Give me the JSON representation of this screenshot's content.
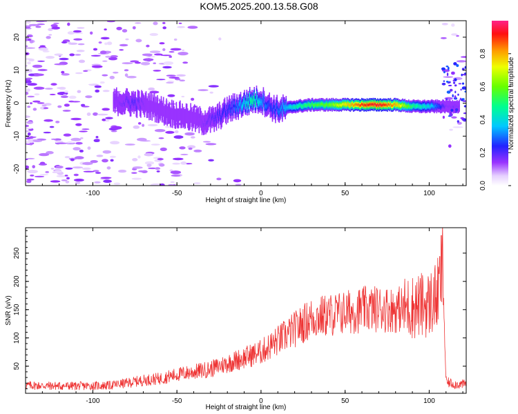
{
  "title": "KOM5.2025.200.13.58.G08",
  "chart_data": [
    {
      "type": "heatmap",
      "xlabel": "Height of straight line (km)",
      "ylabel": "Frequency (Hz)",
      "xlim": [
        -140,
        122
      ],
      "ylim": [
        -25,
        25
      ],
      "xticks": [
        -100,
        -50,
        0,
        50,
        100
      ],
      "yticks": [
        -20,
        -10,
        0,
        10,
        20
      ],
      "colorbar": {
        "label": "Normalized spectral amplitude",
        "range": [
          0,
          1
        ],
        "ticks": [
          0.0,
          0.2,
          0.4,
          0.6,
          0.8
        ]
      },
      "ridge": {
        "x": [
          -85,
          -75,
          -65,
          -55,
          -45,
          -35,
          -28,
          -20,
          -15,
          -10,
          -5,
          0,
          5,
          10,
          20,
          30,
          40,
          50,
          60,
          70,
          80,
          90,
          100,
          110
        ],
        "freq": [
          0.5,
          0,
          -1,
          -3,
          -4,
          -5.5,
          -5,
          -2,
          -1,
          0,
          1,
          1,
          -1,
          -2,
          -1,
          -0.5,
          -0.5,
          -0.5,
          -0.5,
          -0.5,
          -0.5,
          -1,
          -1,
          -1
        ],
        "amplitude": [
          0.15,
          0.2,
          0.1,
          0.1,
          0.12,
          0.15,
          0.2,
          0.25,
          0.3,
          0.4,
          0.5,
          0.35,
          0.25,
          0.3,
          0.45,
          0.55,
          0.6,
          0.75,
          0.9,
          0.95,
          0.8,
          0.5,
          0.4,
          0.15
        ]
      }
    },
    {
      "type": "line",
      "xlabel": "Height of straight line (km)",
      "ylabel": "SNR (v/v)",
      "xlim": [
        -140,
        122
      ],
      "ylim": [
        2,
        295
      ],
      "xticks": [
        -100,
        -50,
        0,
        50,
        100
      ],
      "yticks": [
        50,
        100,
        150,
        200,
        250
      ],
      "series": [
        {
          "color": "#ee3333",
          "x": [
            -140,
            -120,
            -100,
            -90,
            -80,
            -70,
            -60,
            -50,
            -40,
            -30,
            -20,
            -10,
            0,
            10,
            20,
            25,
            30,
            40,
            50,
            60,
            70,
            80,
            90,
            100,
            105,
            108,
            110,
            115,
            122
          ],
          "y": [
            16,
            15,
            15,
            16,
            20,
            25,
            28,
            35,
            40,
            45,
            55,
            65,
            75,
            95,
            115,
            125,
            135,
            140,
            145,
            150,
            152,
            150,
            155,
            160,
            175,
            230,
            22,
            18,
            18
          ]
        }
      ]
    }
  ]
}
